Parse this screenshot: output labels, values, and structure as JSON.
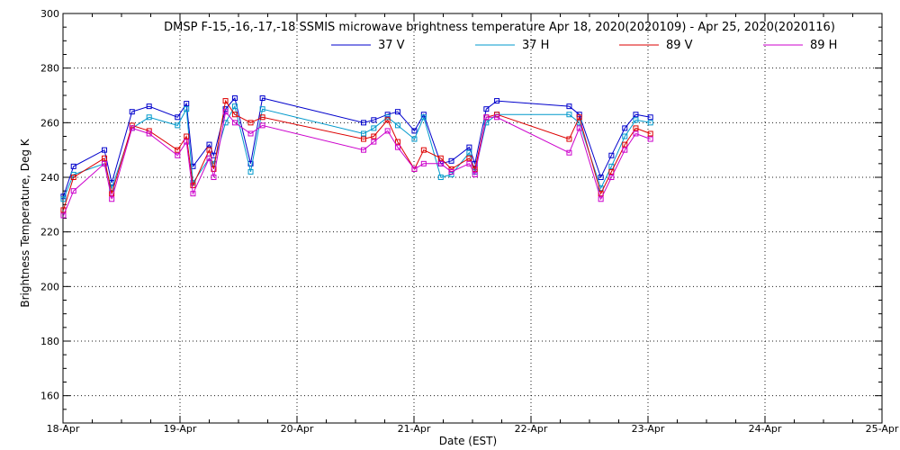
{
  "chart_data": {
    "type": "line",
    "title": "DMSP F-15,-16,-17,-18 SSMIS microwave brightness temperature Apr 18, 2020(2020109) - Apr 25, 2020(2020116)",
    "xlabel": "Date (EST)",
    "ylabel": "Brightness Temperature, Deg K",
    "xlim": [
      "2020-04-18T00:00",
      "2020-04-25T00:00"
    ],
    "ylim": [
      150,
      300
    ],
    "grid": true,
    "legend_position": "top-center",
    "x_ticks": [
      "18-Apr",
      "19-Apr",
      "20-Apr",
      "21-Apr",
      "22-Apr",
      "23-Apr",
      "24-Apr",
      "25-Apr"
    ],
    "y_ticks": [
      160,
      180,
      200,
      220,
      240,
      260,
      280,
      300
    ],
    "x": [
      "2020-04-18T00:05",
      "2020-04-18T02:10",
      "2020-04-18T08:30",
      "2020-04-18T10:00",
      "2020-04-18T14:10",
      "2020-04-18T17:40",
      "2020-04-18T23:30",
      "2020-04-19T01:20",
      "2020-04-19T02:40",
      "2020-04-19T06:00",
      "2020-04-19T06:55",
      "2020-04-19T09:20",
      "2020-04-19T11:15",
      "2020-04-19T14:30",
      "2020-04-19T16:55",
      "2020-04-20T13:40",
      "2020-04-20T15:45",
      "2020-04-20T18:35",
      "2020-04-20T20:40",
      "2020-04-21T00:05",
      "2020-04-21T02:00",
      "2020-04-21T05:30",
      "2020-04-21T07:40",
      "2020-04-21T11:20",
      "2020-04-21T12:30",
      "2020-04-21T14:50",
      "2020-04-21T17:00",
      "2020-04-22T07:50",
      "2020-04-22T09:55",
      "2020-04-22T14:20",
      "2020-04-22T16:30",
      "2020-04-22T19:15",
      "2020-04-22T21:30",
      "2020-04-23T00:30"
    ],
    "series": [
      {
        "name": "37 V",
        "color": "#0000cc",
        "values": [
          233,
          244,
          250,
          238,
          264,
          266,
          262,
          267,
          244,
          252,
          248,
          265,
          269,
          245,
          269,
          260,
          261,
          263,
          264,
          257,
          263,
          245,
          246,
          251,
          245,
          265,
          268,
          266,
          263,
          240,
          248,
          258,
          263,
          262
        ]
      },
      {
        "name": "37 H",
        "color": "#0099cc",
        "values": [
          232,
          241,
          245,
          236,
          258,
          262,
          259,
          265,
          238,
          247,
          245,
          260,
          266,
          242,
          265,
          256,
          258,
          262,
          259,
          254,
          262,
          240,
          241,
          249,
          242,
          260,
          263,
          263,
          260,
          236,
          244,
          255,
          261,
          260
        ]
      },
      {
        "name": "89 V",
        "color": "#dd0000",
        "values": [
          228,
          240,
          247,
          234,
          259,
          257,
          250,
          255,
          237,
          250,
          243,
          268,
          263,
          260,
          262,
          254,
          255,
          261,
          253,
          243,
          250,
          247,
          243,
          247,
          243,
          262,
          263,
          254,
          262,
          234,
          242,
          252,
          258,
          256
        ]
      },
      {
        "name": "89 H",
        "color": "#cc00cc",
        "values": [
          226,
          235,
          245,
          232,
          258,
          256,
          248,
          253,
          234,
          247,
          240,
          264,
          260,
          256,
          259,
          250,
          253,
          257,
          251,
          243,
          245,
          245,
          242,
          245,
          241,
          262,
          262,
          249,
          258,
          232,
          240,
          250,
          256,
          254
        ]
      }
    ]
  }
}
